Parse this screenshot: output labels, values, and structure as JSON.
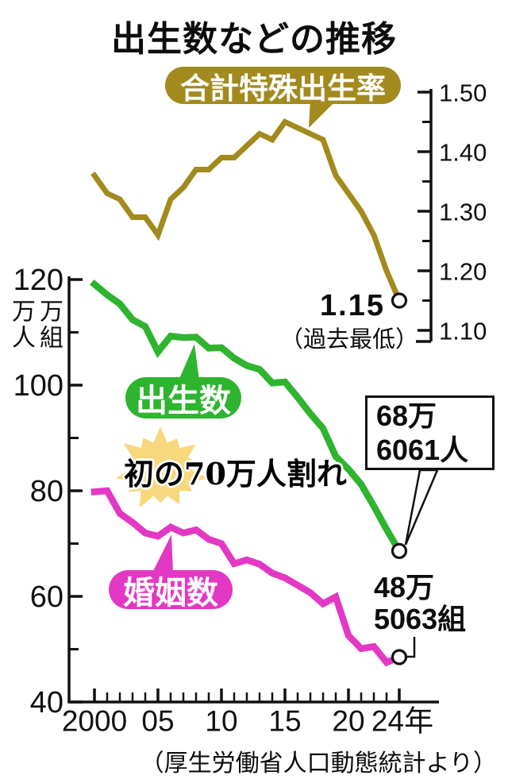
{
  "title": "出生数などの推移",
  "source": "（厚生労働省人口動態統計より）",
  "colors": {
    "tfr": "#a28a1d",
    "births": "#2eb42e",
    "marriages": "#e338c4",
    "starburst": "#f8d87d",
    "ink": "#111111"
  },
  "badges": {
    "tfr": "合計特殊出生率",
    "births": "出生数",
    "marriages": "婚姻数"
  },
  "left_axis": {
    "title_columns": [
      "万人",
      "万組"
    ],
    "major_labels": [
      "120",
      "100",
      "80",
      "60",
      "40"
    ],
    "major_values": [
      120,
      100,
      80,
      60,
      40
    ],
    "minor_values": [
      110,
      90,
      70,
      50
    ],
    "range": [
      40,
      120
    ]
  },
  "right_axis": {
    "major_labels": [
      "1.50",
      "1.40",
      "1.30",
      "1.20",
      "1.10"
    ],
    "major_values": [
      1.5,
      1.4,
      1.3,
      1.2,
      1.1
    ],
    "minor_values": [
      1.45,
      1.35,
      1.25,
      1.15
    ],
    "range": [
      1.1,
      1.5
    ]
  },
  "x_axis": {
    "major_ticks": [
      {
        "year": 2000,
        "label": "2000"
      },
      {
        "year": 2005,
        "label": "05"
      },
      {
        "year": 2010,
        "label": "10"
      },
      {
        "year": 2015,
        "label": "15"
      },
      {
        "year": 2020,
        "label": "20"
      },
      {
        "year": 2024,
        "label": "24年"
      }
    ],
    "minor_step": 1,
    "range": [
      2000,
      2024
    ]
  },
  "annotations": {
    "tfr_end": {
      "value": "1.15",
      "note": "（過去最低）"
    },
    "births_end": {
      "line1": "68万",
      "line2": "6061人"
    },
    "marriages_end": {
      "line1": "48万",
      "line2": "5063組"
    },
    "starburst": "初の70万人割れ"
  },
  "chart_data": {
    "type": "line",
    "x": [
      2000,
      2001,
      2002,
      2003,
      2004,
      2005,
      2006,
      2007,
      2008,
      2009,
      2010,
      2011,
      2012,
      2013,
      2014,
      2015,
      2016,
      2017,
      2018,
      2019,
      2020,
      2021,
      2022,
      2023,
      2024
    ],
    "series": [
      {
        "name": "合計特殊出生率",
        "axis": "right",
        "color": "tfr",
        "values": [
          1.36,
          1.33,
          1.32,
          1.29,
          1.29,
          1.26,
          1.32,
          1.34,
          1.37,
          1.37,
          1.39,
          1.39,
          1.41,
          1.43,
          1.42,
          1.45,
          1.44,
          1.43,
          1.42,
          1.36,
          1.33,
          1.3,
          1.26,
          1.2,
          1.15
        ]
      },
      {
        "name": "出生数",
        "axis": "left",
        "color": "births",
        "values": [
          119.1,
          117.1,
          115.4,
          112.4,
          111.1,
          106.3,
          109.3,
          109.0,
          109.1,
          107.0,
          107.1,
          105.1,
          103.7,
          103.0,
          100.4,
          100.6,
          97.7,
          94.6,
          91.8,
          86.5,
          84.1,
          81.2,
          77.1,
          72.7,
          68.6
        ]
      },
      {
        "name": "婚姻数",
        "axis": "left",
        "color": "marriages",
        "values": [
          79.8,
          80.0,
          75.7,
          74.0,
          72.0,
          71.4,
          73.1,
          72.0,
          72.6,
          70.8,
          70.0,
          66.2,
          66.9,
          66.1,
          64.4,
          63.5,
          62.1,
          60.7,
          58.6,
          59.9,
          52.6,
          50.1,
          50.5,
          47.5,
          48.5
        ]
      }
    ],
    "left_ylim": [
      40,
      120
    ],
    "right_ylim": [
      1.1,
      1.5
    ],
    "left_unit": "万人 / 万組",
    "grid": false,
    "end_markers": true
  }
}
